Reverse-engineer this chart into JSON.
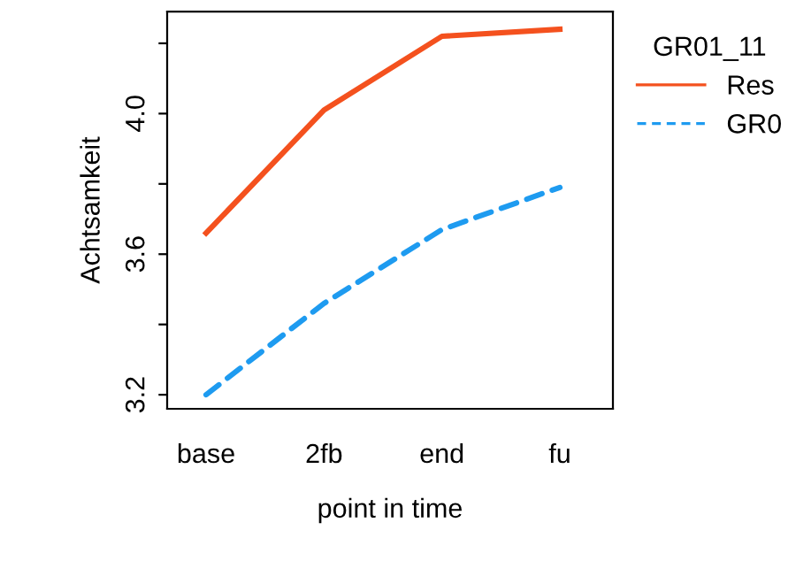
{
  "chart_data": {
    "type": "line",
    "xlabel": "point in time",
    "ylabel": "Achtsamkeit",
    "legend_title": "GR01_11",
    "categories": [
      "base",
      "2fb",
      "end",
      "fu"
    ],
    "series": [
      {
        "name": "Res",
        "color": "#f4511e",
        "line_style": "solid",
        "values": [
          3.66,
          4.01,
          4.22,
          4.24
        ]
      },
      {
        "name": "GR0",
        "color": "#1e9bf0",
        "line_style": "dashed",
        "values": [
          3.2,
          3.46,
          3.67,
          3.79
        ]
      }
    ],
    "ylim": [
      3.16,
      4.29
    ],
    "yticks": [
      3.2,
      {
        "value": 3.4,
        "label": null
      },
      3.6,
      {
        "value": 3.8,
        "label": null
      },
      {
        "value": 4.0,
        "label": "4.0"
      },
      {
        "value": 4.2,
        "label": null
      }
    ],
    "grid": false,
    "legend": "right",
    "marker": "none"
  }
}
